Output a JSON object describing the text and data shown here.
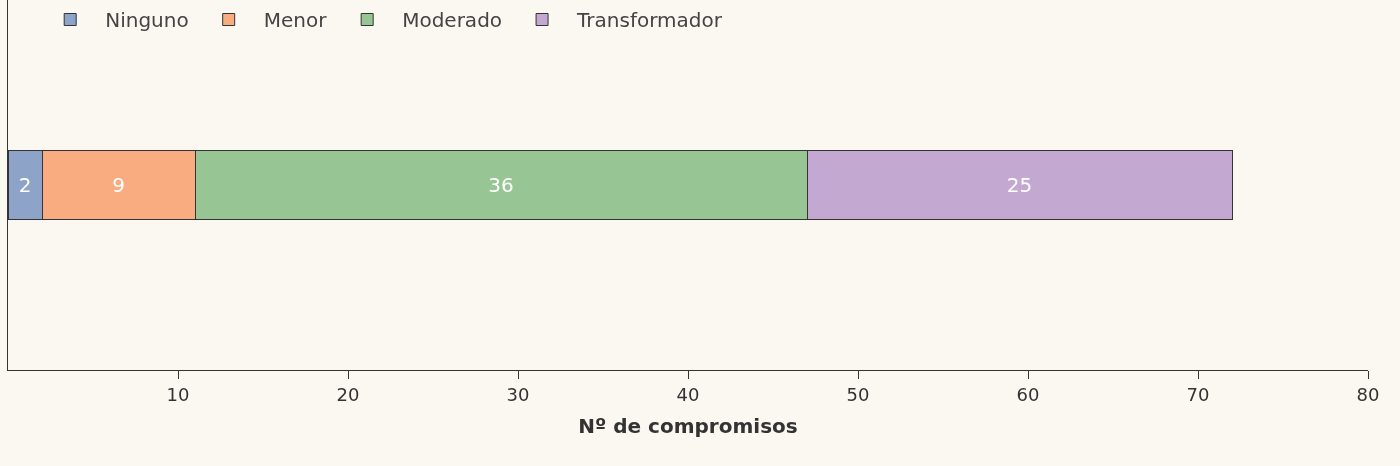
{
  "chart_data": {
    "type": "bar",
    "orientation": "horizontal",
    "stacked": true,
    "xlabel": "Nº de compromisos",
    "categories": [
      null
    ],
    "series": [
      {
        "name": "Ninguno",
        "color": "#8ea3c8",
        "values": [
          2
        ]
      },
      {
        "name": "Menor",
        "color": "#f8ac80",
        "values": [
          9
        ]
      },
      {
        "name": "Moderado",
        "color": "#97c593",
        "values": [
          36
        ]
      },
      {
        "name": "Transformador",
        "color": "#c3a9d2",
        "values": [
          25
        ]
      }
    ],
    "xlim": [
      0,
      80
    ],
    "xticks": [
      10,
      20,
      30,
      40,
      50,
      60,
      70,
      80
    ],
    "data_labels": true,
    "legend": "top left",
    "grid": false,
    "tick_labels": "x"
  }
}
